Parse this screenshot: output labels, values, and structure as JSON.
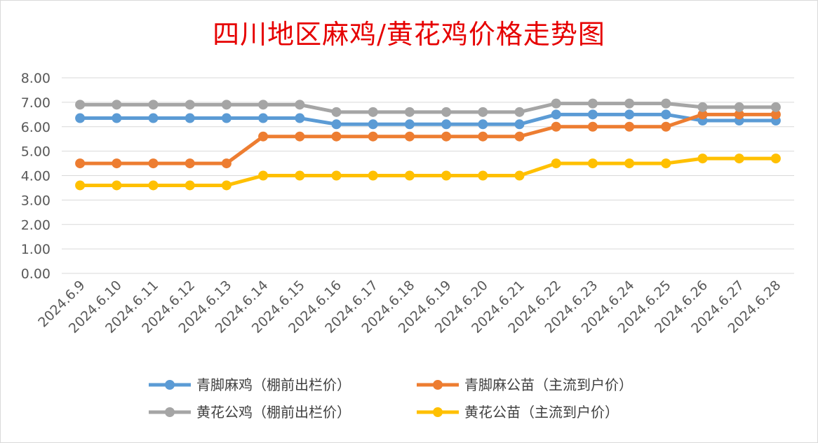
{
  "chart_data": {
    "type": "line",
    "title": "四川地区麻鸡/黄花鸡价格走势图",
    "xlabel": "",
    "ylabel": "",
    "ylim": [
      0,
      8
    ],
    "yticks": [
      "0.00",
      "1.00",
      "2.00",
      "3.00",
      "4.00",
      "5.00",
      "6.00",
      "7.00",
      "8.00"
    ],
    "grid": true,
    "legend_position": "bottom",
    "categories": [
      "2024.6.9",
      "2024.6.10",
      "2024.6.11",
      "2024.6.12",
      "2024.6.13",
      "2024.6.14",
      "2024.6.15",
      "2024.6.16",
      "2024.6.17",
      "2024.6.18",
      "2024.6.19",
      "2024.6.20",
      "2024.6.21",
      "2024.6.22",
      "2024.6.23",
      "2024.6.24",
      "2024.6.25",
      "2024.6.26",
      "2024.6.27",
      "2024.6.28"
    ],
    "series": [
      {
        "name": "青脚麻鸡（棚前出栏价）",
        "color": "#5b9bd5",
        "values": [
          6.35,
          6.35,
          6.35,
          6.35,
          6.35,
          6.35,
          6.35,
          6.1,
          6.1,
          6.1,
          6.1,
          6.1,
          6.1,
          6.5,
          6.5,
          6.5,
          6.5,
          6.25,
          6.25,
          6.25
        ]
      },
      {
        "name": "青脚麻公苗（主流到户价）",
        "color": "#ed7d31",
        "values": [
          4.5,
          4.5,
          4.5,
          4.5,
          4.5,
          5.6,
          5.6,
          5.6,
          5.6,
          5.6,
          5.6,
          5.6,
          5.6,
          6.0,
          6.0,
          6.0,
          6.0,
          6.5,
          6.5,
          6.5
        ]
      },
      {
        "name": "黄花公鸡（棚前出栏价）",
        "color": "#a5a5a5",
        "values": [
          6.9,
          6.9,
          6.9,
          6.9,
          6.9,
          6.9,
          6.9,
          6.6,
          6.6,
          6.6,
          6.6,
          6.6,
          6.6,
          6.95,
          6.95,
          6.95,
          6.95,
          6.8,
          6.8,
          6.8
        ]
      },
      {
        "name": "黄花公苗（主流到户价）",
        "color": "#ffc000",
        "values": [
          3.6,
          3.6,
          3.6,
          3.6,
          3.6,
          4.0,
          4.0,
          4.0,
          4.0,
          4.0,
          4.0,
          4.0,
          4.0,
          4.5,
          4.5,
          4.5,
          4.5,
          4.7,
          4.7,
          4.7
        ]
      }
    ]
  }
}
